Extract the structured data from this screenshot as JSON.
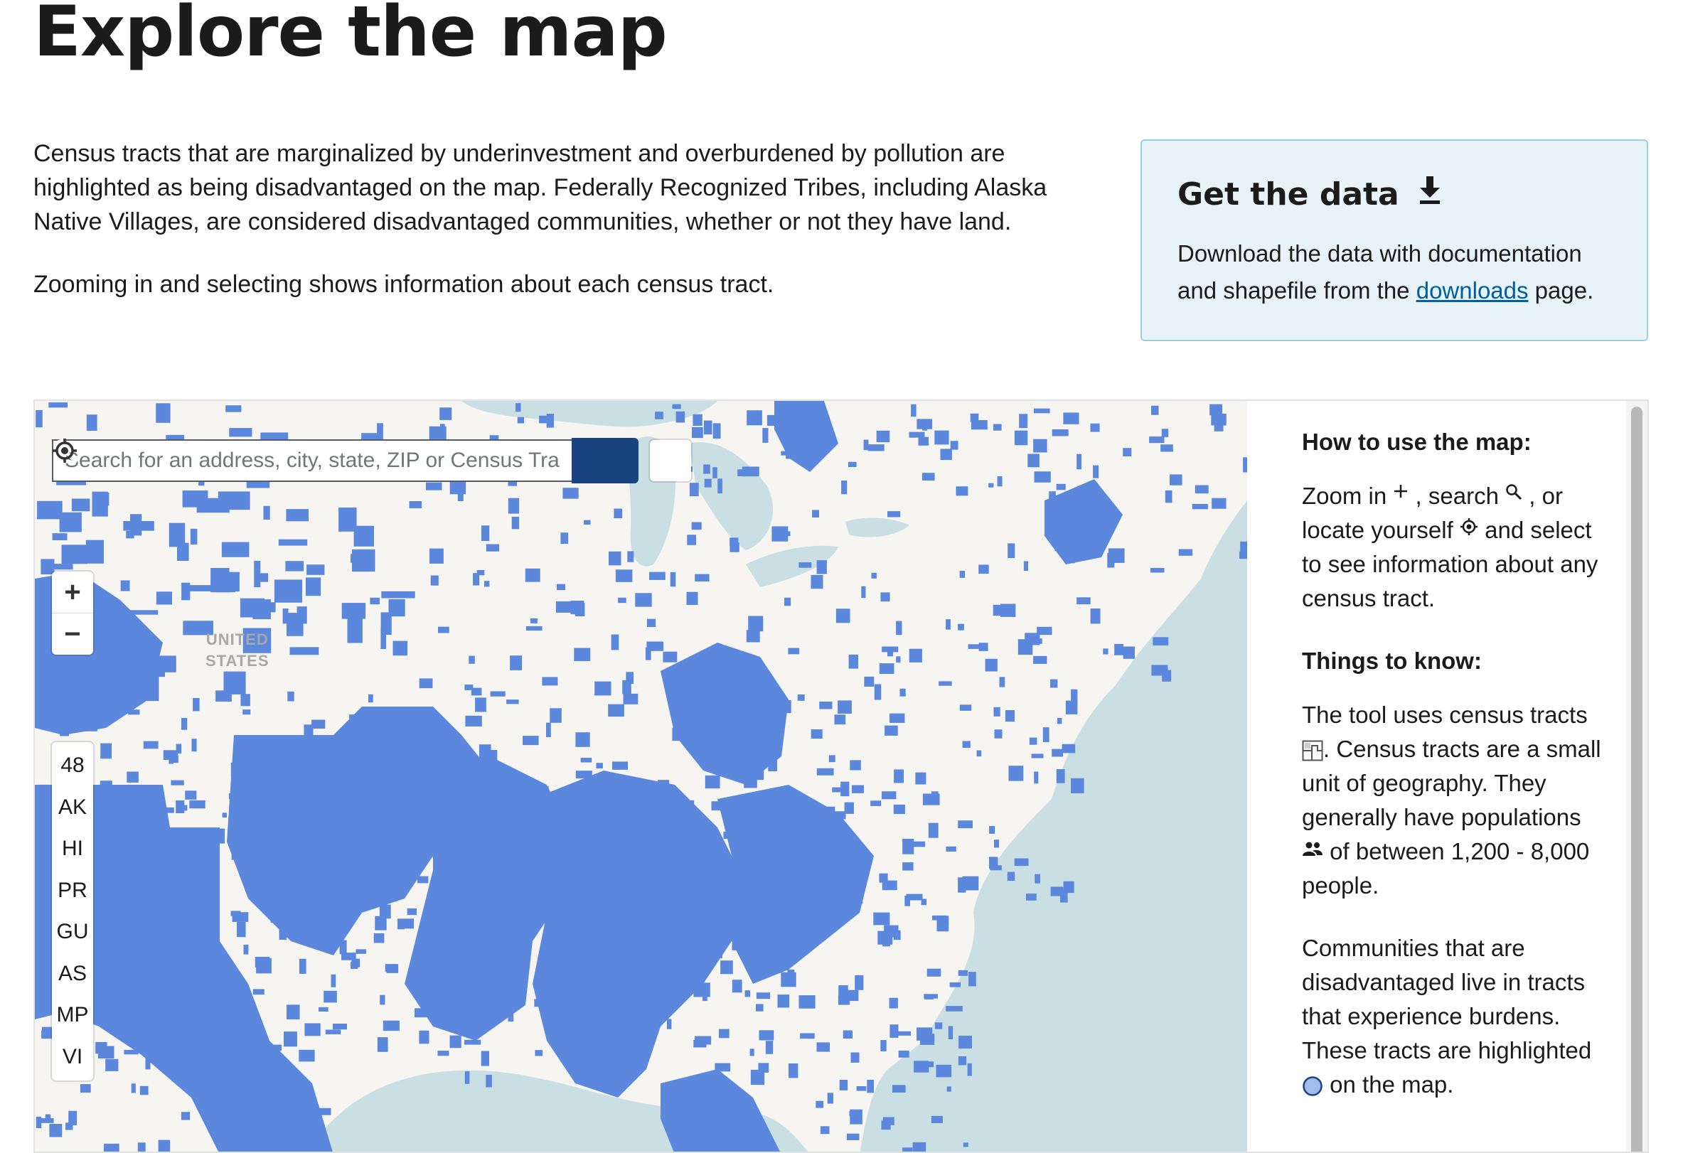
{
  "page": {
    "title": "Explore the map",
    "intro_p1": "Census tracts that are marginalized by underinvestment and overburdened by pollution are highlighted as being disadvantaged on the map. Federally Recognized Tribes, including Alaska Native Villages, are considered disadvantaged communities, whether or not they have land.",
    "intro_p2": "Zooming in and selecting shows information about each census tract."
  },
  "get_data": {
    "title": "Get the data",
    "icon": "download-icon",
    "text_before": "Download the data with documentation and shapefile from the ",
    "link_label": "downloads",
    "text_after": " page."
  },
  "map": {
    "search_placeholder": "Search for an address, city, state, ZIP or Census Tract",
    "zoom_in": "+",
    "zoom_out": "−",
    "territories": [
      "48",
      "AK",
      "HI",
      "PR",
      "GU",
      "AS",
      "MP",
      "VI"
    ],
    "country_label_line1": "UNITED",
    "country_label_line2": "STATES",
    "colors": {
      "land": "#f6f5f2",
      "water": "#cadfe3",
      "highlight": "#5b88dc",
      "search_button": "#1a4480"
    }
  },
  "how_to": {
    "heading": "How to use the map:",
    "t1": "Zoom in ",
    "t2": " , search ",
    "t3": " , or locate yourself ",
    "t4": " and select to see information about any census tract."
  },
  "things": {
    "heading": "Things to know:",
    "p1a": "The tool uses census tracts ",
    "p1b": ". Census tracts are a small unit of geography. They generally have populations ",
    "p1c": " of between 1,200 - 8,000 people.",
    "p2a": "Communities that are disadvantaged live in tracts that experience burdens. These tracts are highlighted ",
    "p2b": " on the map."
  }
}
